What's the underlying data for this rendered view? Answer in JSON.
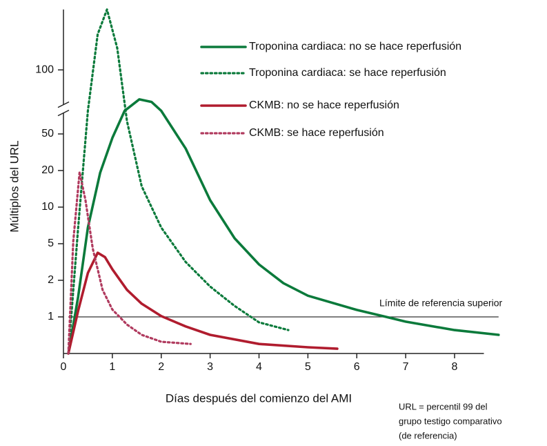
{
  "chart_data": {
    "type": "line",
    "x_label": "Días después del comienzo del AMI",
    "y_label": "Múltiplos del URL",
    "xlim": [
      0,
      8.6
    ],
    "xticks": [
      0,
      1,
      2,
      3,
      4,
      5,
      6,
      7,
      8
    ],
    "ylim": [
      0,
      200
    ],
    "yticks": [
      1,
      2,
      5,
      10,
      20,
      50,
      100
    ],
    "y_axis_break": true,
    "legend": "top-right",
    "series": [
      {
        "name": "Troponina cardiaca: no se hace reperfusión",
        "color": "#0b7a3b",
        "style": "solid",
        "x": [
          0.1,
          0.3,
          0.5,
          0.75,
          1.0,
          1.25,
          1.55,
          1.8,
          2.0,
          2.5,
          3.0,
          3.5,
          4.0,
          4.5,
          5,
          6,
          6.6,
          7,
          8,
          8.9
        ],
        "values": [
          0,
          1.55,
          7.2,
          19.4,
          46.7,
          68,
          77,
          75,
          68,
          38,
          11.9,
          5.75,
          3.3,
          1.92,
          1.58,
          1.19,
          1.0,
          0.87,
          0.64,
          0.51
        ]
      },
      {
        "name": "Troponina cardiaca: se hace reperfusión",
        "color": "#0b7a3b",
        "style": "dotted",
        "x": [
          0.1,
          0.3,
          0.5,
          0.7,
          0.89,
          1.1,
          1.3,
          1.6,
          2,
          2.5,
          3,
          3.5,
          4,
          4.6
        ],
        "values": [
          0,
          7.2,
          68,
          159,
          200,
          136,
          60,
          15.7,
          7.2,
          3.5,
          1.83,
          1.3,
          0.85,
          0.64
        ]
      },
      {
        "name": "CKMB: no se hace reperfusión",
        "color": "#b01c2e",
        "style": "solid",
        "x": [
          0.1,
          0.3,
          0.5,
          0.7,
          0.85,
          1.0,
          1.3,
          1.6,
          2,
          2.5,
          3,
          4,
          5,
          5.6
        ],
        "values": [
          0,
          1.17,
          2.6,
          4.26,
          3.9,
          2.9,
          1.74,
          1.36,
          1.02,
          0.74,
          0.51,
          0.26,
          0.17,
          0.13
        ]
      },
      {
        "name": "CKMB: se hace reperfusión",
        "color": "#b03a5e",
        "style": "dotted",
        "x": [
          0.1,
          0.2,
          0.33,
          0.45,
          0.6,
          0.8,
          1,
          1.3,
          1.6,
          2,
          2.6
        ],
        "values": [
          0,
          5.3,
          19.6,
          11.9,
          4.6,
          1.74,
          1.2,
          0.79,
          0.51,
          0.32,
          0.26
        ]
      }
    ],
    "reference_line": {
      "value": 1,
      "x": [
        0.1,
        8.9
      ],
      "label": "Límite de referencia superior"
    },
    "note": [
      "URL = percentil 99 del",
      "grupo testigo comparativo",
      "(de referencia)"
    ]
  }
}
